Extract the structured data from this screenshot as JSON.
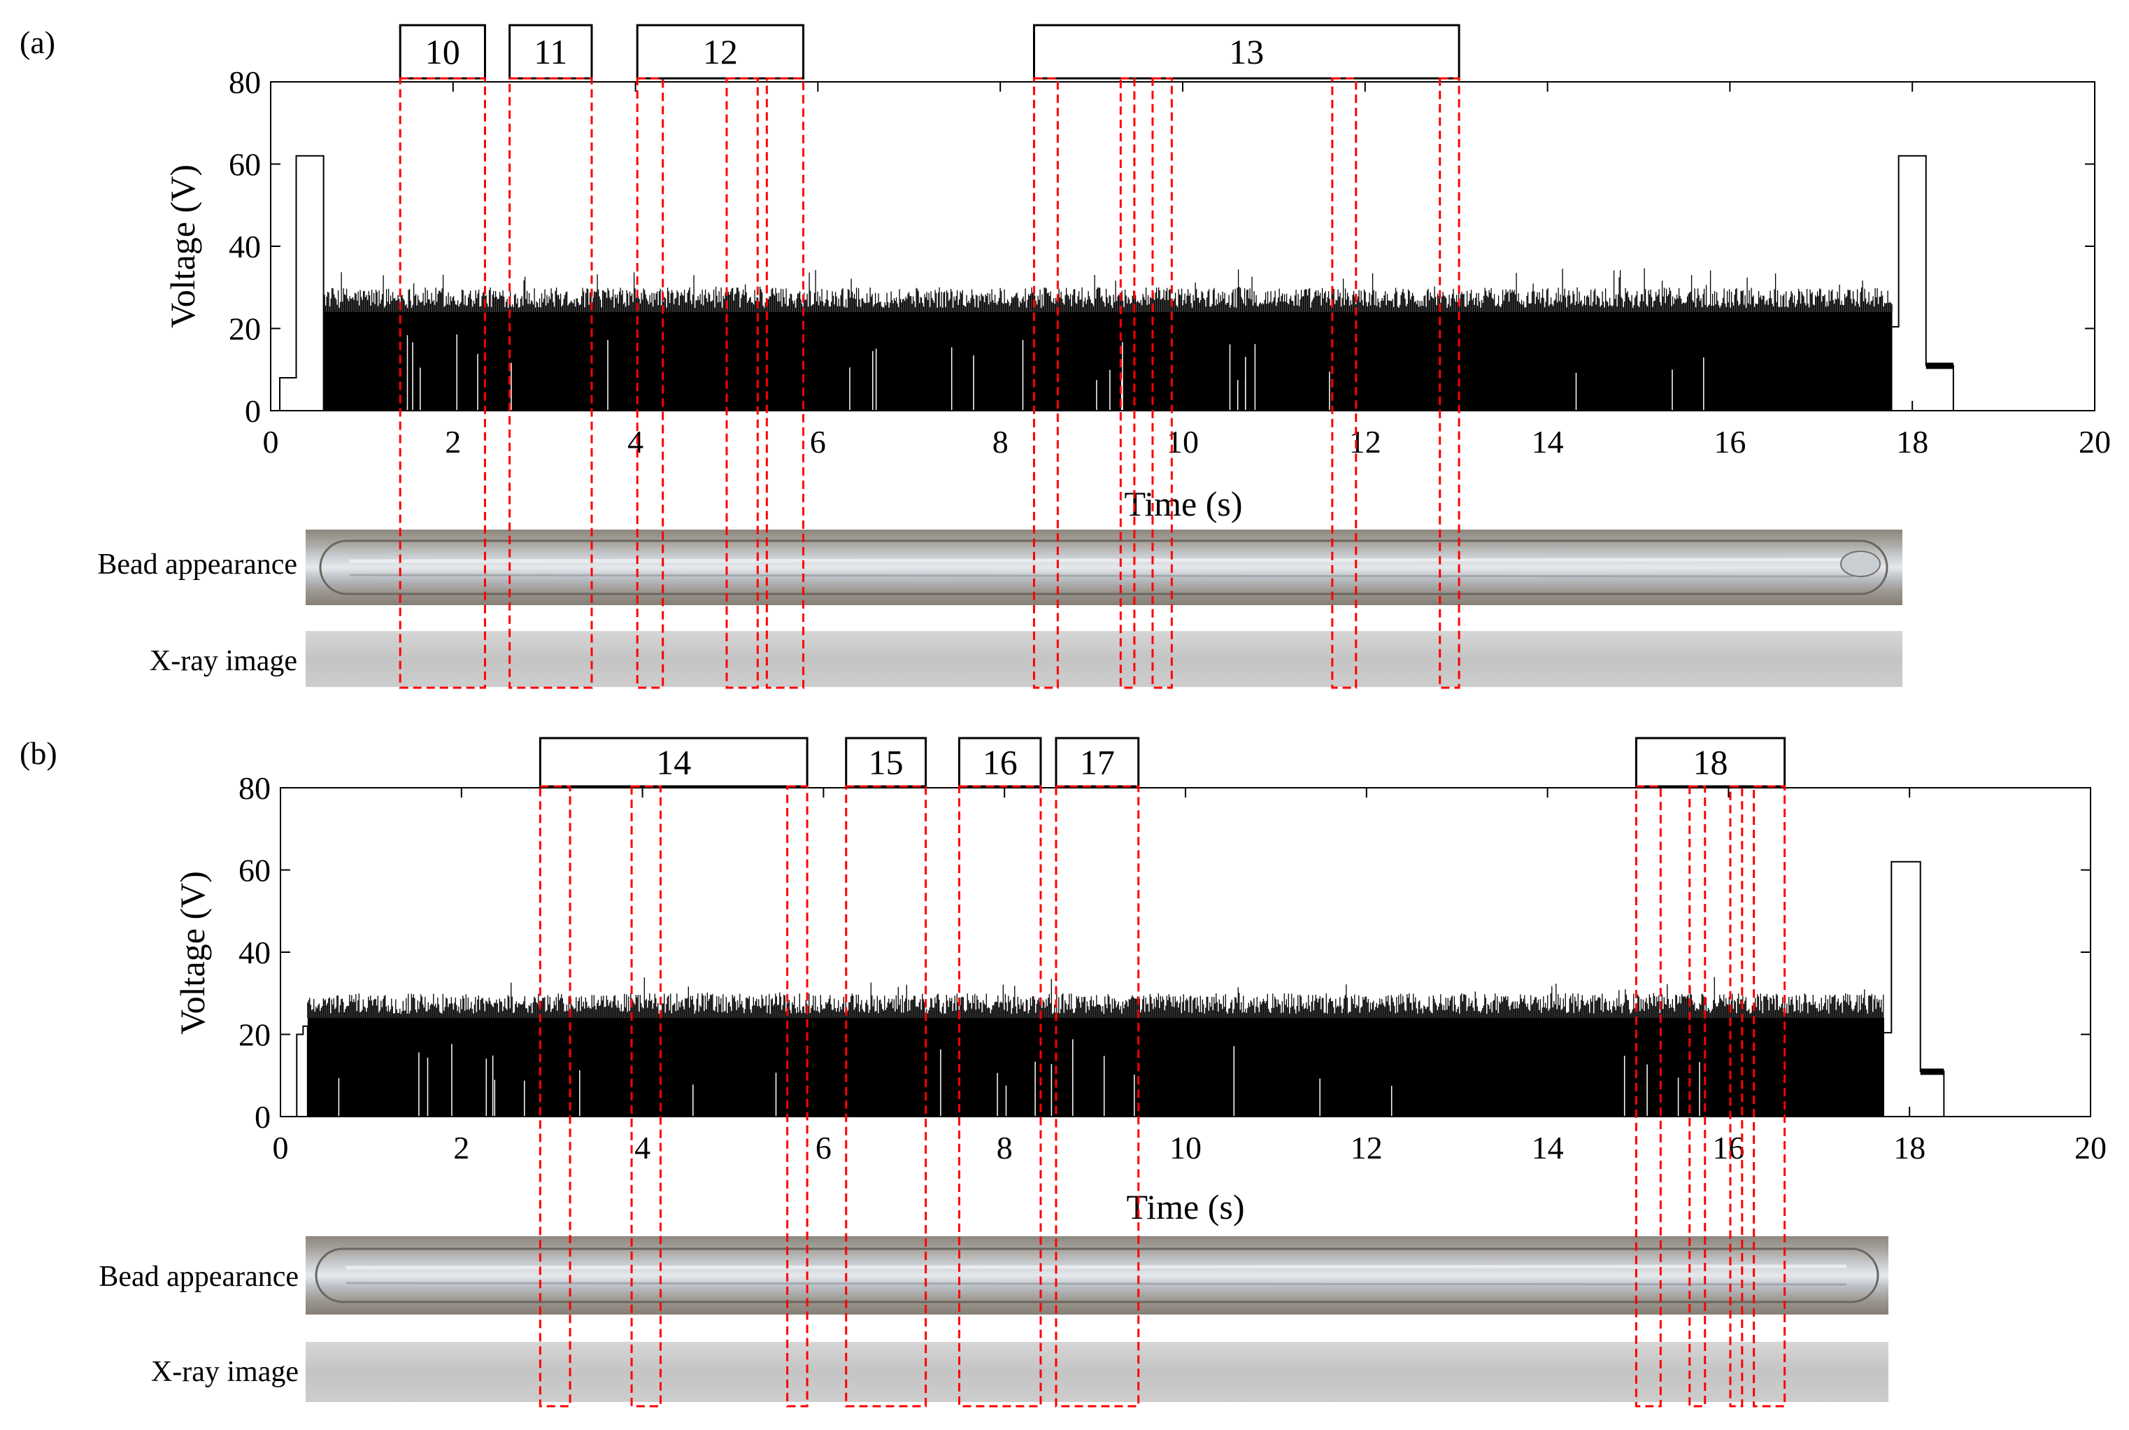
{
  "chart_data": [
    {
      "panel": "(a)",
      "type": "line",
      "xlabel": "Time (s)",
      "ylabel": "Voltage (V)",
      "xlim": [
        0,
        20
      ],
      "ylim": [
        0,
        80
      ],
      "xticks": [
        0,
        2,
        4,
        6,
        8,
        10,
        12,
        14,
        16,
        18,
        20
      ],
      "yticks": [
        0,
        20,
        40,
        60,
        80
      ],
      "grid": false,
      "signal": {
        "striking_pulse": {
          "start": 0.1,
          "ramp_end": 0.28,
          "end": 0.58,
          "low": 8,
          "level": 62
        },
        "arc": {
          "start": 0.58,
          "end": 17.78,
          "baseline": 24,
          "typical_peak": 29,
          "max_peak": 35
        },
        "end_pulse": {
          "start": 17.85,
          "end": 18.15,
          "level": 62,
          "tail_level": 11,
          "tail_end": 18.45
        }
      },
      "row_labels": [
        "Bead appearance",
        "X-ray image"
      ],
      "defect_regions": [
        {
          "label": "10",
          "windows": [
            [
              1.42,
              2.35
            ]
          ]
        },
        {
          "label": "11",
          "windows": [
            [
              2.62,
              3.52
            ]
          ]
        },
        {
          "label": "12",
          "windows": [
            [
              4.02,
              4.3
            ],
            [
              5.0,
              5.34
            ],
            [
              5.44,
              5.84
            ]
          ]
        },
        {
          "label": "13",
          "windows": [
            [
              8.37,
              8.63
            ],
            [
              9.32,
              9.47
            ],
            [
              9.67,
              9.88
            ],
            [
              11.64,
              11.9
            ],
            [
              12.82,
              13.03
            ]
          ]
        }
      ]
    },
    {
      "panel": "(b)",
      "type": "line",
      "xlabel": "Time (s)",
      "ylabel": "Voltage (V)",
      "xlim": [
        0,
        20
      ],
      "ylim": [
        0,
        80
      ],
      "xticks": [
        0,
        2,
        4,
        6,
        8,
        10,
        12,
        14,
        16,
        18,
        20
      ],
      "yticks": [
        0,
        20,
        40,
        60,
        80
      ],
      "grid": false,
      "signal": {
        "striking_pulse": {
          "start": 0.18,
          "ramp_end": 0.25,
          "end": 0.3,
          "low": 20,
          "level": 22
        },
        "arc": {
          "start": 0.3,
          "end": 17.72,
          "baseline": 24,
          "typical_peak": 29,
          "max_peak": 34
        },
        "end_pulse": {
          "start": 17.8,
          "end": 18.12,
          "level": 62,
          "tail_level": 11,
          "tail_end": 18.38
        }
      },
      "row_labels": [
        "Bead appearance",
        "X-ray image"
      ],
      "defect_regions": [
        {
          "label": "14",
          "windows": [
            [
              2.87,
              3.2
            ],
            [
              3.88,
              4.2
            ],
            [
              5.6,
              5.82
            ]
          ]
        },
        {
          "label": "15",
          "windows": [
            [
              6.25,
              7.13
            ]
          ]
        },
        {
          "label": "16",
          "windows": [
            [
              7.5,
              8.4
            ]
          ]
        },
        {
          "label": "17",
          "windows": [
            [
              8.57,
              9.48
            ]
          ]
        },
        {
          "label": "18",
          "windows": [
            [
              14.98,
              15.25
            ],
            [
              15.57,
              15.74
            ],
            [
              16.02,
              16.15
            ],
            [
              16.28,
              16.62
            ]
          ]
        }
      ]
    }
  ]
}
